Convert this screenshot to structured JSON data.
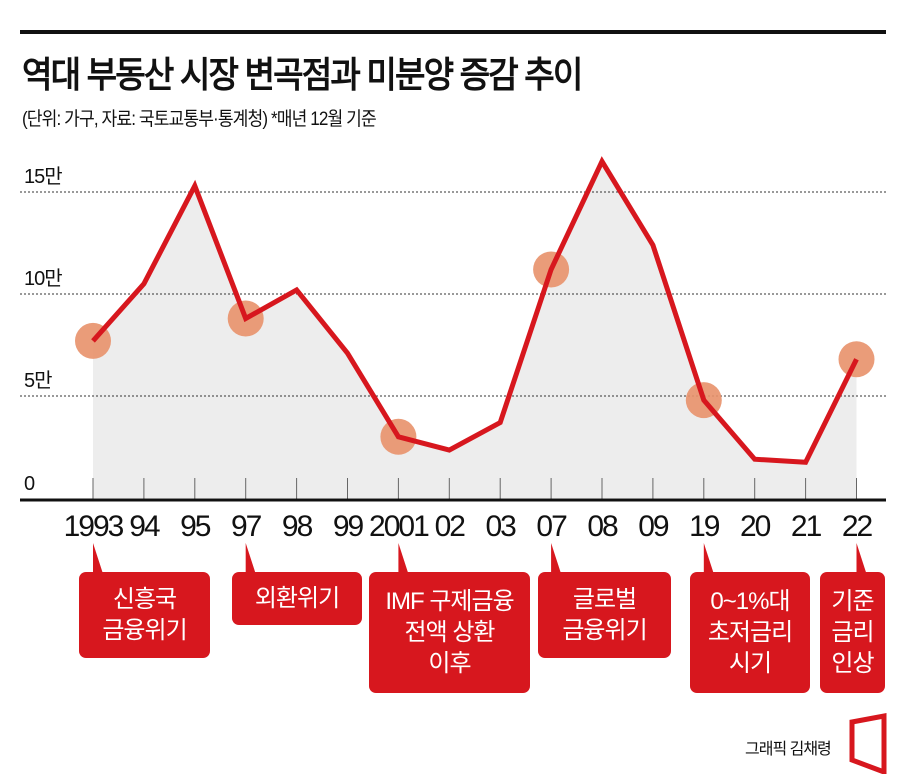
{
  "title": "역대 부동산 시장 변곡점과 미분양 증감 추이",
  "subtitle": "(단위: 가구, 자료: 국토교통부·통계청)  *매년 12월 기준",
  "credit": "그래픽 김채령",
  "colors": {
    "line": "#d7171e",
    "marker": "#e8916a",
    "area": "#ededed",
    "box": "#d7171e"
  },
  "chart_data": {
    "type": "area",
    "title": "역대 부동산 시장 변곡점과 미분양 증감 추이",
    "ylabel": "",
    "xlabel": "",
    "ylim": [
      0,
      160000
    ],
    "grid": true,
    "yticks": [
      {
        "value": 0,
        "label": "0"
      },
      {
        "value": 50000,
        "label": "5만"
      },
      {
        "value": 100000,
        "label": "10만"
      },
      {
        "value": 150000,
        "label": "15만"
      }
    ],
    "categories": [
      "1993",
      "94",
      "95",
      "97",
      "98",
      "99",
      "2001",
      "02",
      "03",
      "07",
      "08",
      "09",
      "19",
      "20",
      "21",
      "22"
    ],
    "values": [
      77000,
      105000,
      153000,
      88000,
      102000,
      71000,
      30000,
      23500,
      37000,
      112000,
      165000,
      124000,
      48000,
      19000,
      17500,
      68000
    ],
    "highlighted": [
      "1993",
      "97",
      "2001",
      "07",
      "19",
      "22"
    ],
    "annotations": [
      {
        "category": "1993",
        "text": "신흥국\n금융위기"
      },
      {
        "category": "97",
        "text": "외환위기"
      },
      {
        "category": "2001",
        "text": "IMF 구제금융\n전액 상환\n이후"
      },
      {
        "category": "07",
        "text": "글로벌\n금융위기"
      },
      {
        "category": "19",
        "text": "0~1%대\n초저금리\n시기"
      },
      {
        "category": "22",
        "text": "기준\n금리\n인상"
      }
    ]
  }
}
